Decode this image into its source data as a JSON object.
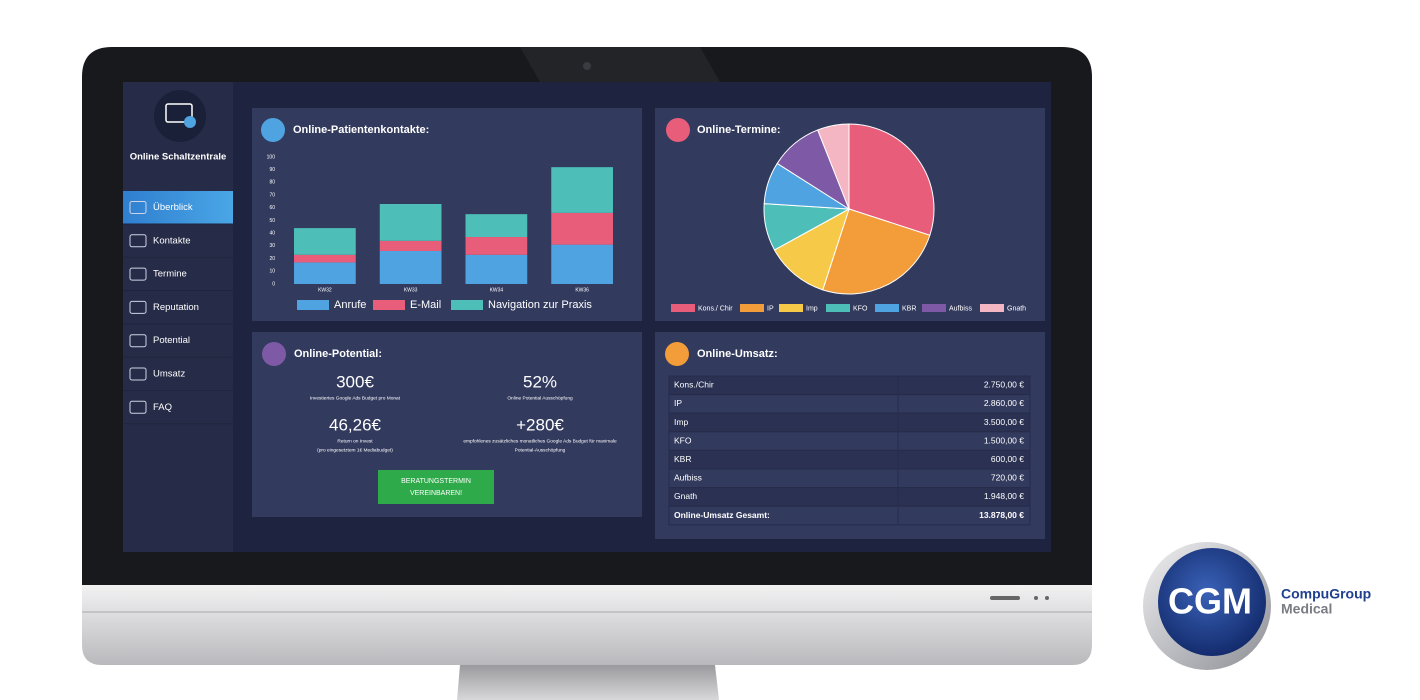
{
  "sidebar": {
    "title": "Online Schaltzentrale",
    "active": 0,
    "items": [
      "Überblick",
      "Kontakte",
      "Termine",
      "Reputation",
      "Potential",
      "Umsatz",
      "FAQ"
    ]
  },
  "contacts": {
    "title": "Online-Patientenkontakte:",
    "chart": {
      "type": "bar",
      "stacked": true,
      "categories": [
        "KW32",
        "KW33",
        "KW34",
        "KW36"
      ],
      "series": [
        {
          "name": "Anrufe",
          "color": "#4fa3e0",
          "values": [
            17,
            26,
            23,
            31
          ]
        },
        {
          "name": "E-Mail",
          "color": "#e85d7a",
          "values": [
            6,
            8,
            14,
            25
          ]
        },
        {
          "name": "Navigation zur Praxis",
          "color": "#4dbfb8",
          "values": [
            21,
            29,
            18,
            36
          ]
        }
      ],
      "ylim": [
        0,
        100
      ],
      "yticks": [
        0,
        10,
        20,
        30,
        40,
        50,
        60,
        70,
        80,
        90,
        100
      ]
    }
  },
  "appointments": {
    "title": "Online-Termine:",
    "chart": {
      "type": "pie",
      "categories": [
        "Kons./ Chir",
        "IP",
        "Imp",
        "KFO",
        "KBR",
        "Aufbiss",
        "Gnath"
      ],
      "values": [
        30,
        25,
        12,
        9,
        8,
        10,
        6
      ],
      "colors": [
        "#e85d7a",
        "#f39c3a",
        "#f7c948",
        "#4dbfb8",
        "#4fa3e0",
        "#7e5aa6",
        "#f4b6c2"
      ]
    }
  },
  "potential": {
    "title": "Online-Potential:",
    "metrics": [
      {
        "value": "300€",
        "label": [
          "Investiertes Google Ads Budget pro Monat"
        ]
      },
      {
        "value": "52%",
        "label": [
          "Online Potential Ausschöpfung"
        ]
      },
      {
        "value": "46,26€",
        "label": [
          "Return on Invest",
          "(pro eingesetztem 1€ Mediabudget)"
        ]
      },
      {
        "value": "+280€",
        "label": [
          "empfohlenes zusätzliches monatliches Google Ads Budget für maximale",
          "Potential-Ausschöpfung"
        ]
      }
    ],
    "button": [
      "BERATUNGSTERMIN",
      "VEREINBAREN!"
    ]
  },
  "revenue": {
    "title": "Online-Umsatz:",
    "rows": [
      [
        "Kons./Chir",
        "2.750,00 €"
      ],
      [
        "IP",
        "2.860,00 €"
      ],
      [
        "Imp",
        "3.500,00 €"
      ],
      [
        "KFO",
        "1.500,00 €"
      ],
      [
        "KBR",
        "600,00 €"
      ],
      [
        "Aufbiss",
        "720,00 €"
      ],
      [
        "Gnath",
        "1.948,00 €"
      ]
    ],
    "total": [
      "Online-Umsatz Gesamt:",
      "13.878,00 €"
    ]
  },
  "brand": {
    "logo": "CGM",
    "name": [
      "CompuGroup",
      "Medical"
    ]
  }
}
